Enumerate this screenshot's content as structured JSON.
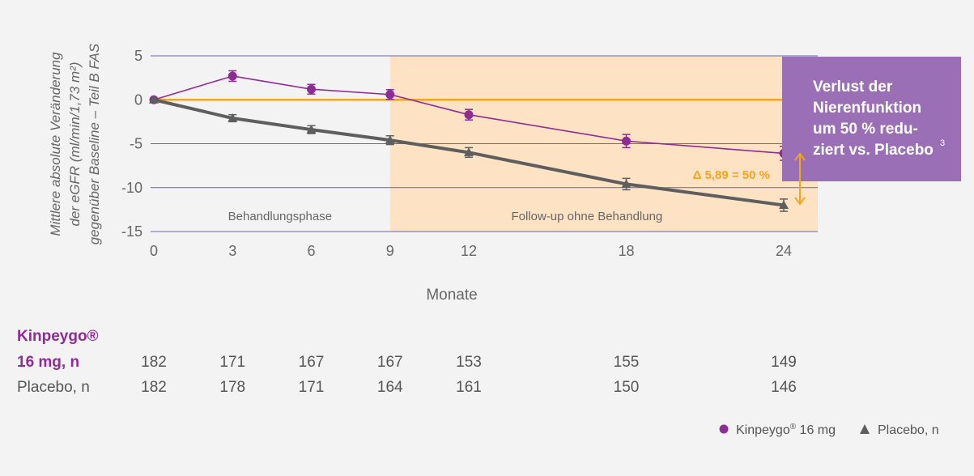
{
  "colors": {
    "kinpeygo": "#8d2c94",
    "placebo": "#5e5e5e",
    "reference": "#f2a520",
    "followup_band": "#fde3c3",
    "callout_bg": "#9b6fb5",
    "grid": "#6a63b8",
    "delta": "#f2a520"
  },
  "chart_data": {
    "type": "line",
    "ylabel_lines": [
      "Mittlere absolute Veränderung",
      "der eGFR (ml/min/1,73 m²)",
      "gegenüber Baseline – Teil B FAS"
    ],
    "xlabel": "Monate",
    "x": [
      0,
      3,
      6,
      9,
      12,
      18,
      24
    ],
    "x_tick_labels": [
      "0",
      "3",
      "6",
      "9",
      "12",
      "18",
      "24"
    ],
    "y_ticks": [
      5,
      0,
      -5,
      -10,
      -15
    ],
    "y_tick_labels": [
      "5",
      "0",
      "-5",
      "-10",
      "-15"
    ],
    "xlim": [
      0,
      24
    ],
    "ylim": [
      -15,
      5
    ],
    "series": [
      {
        "name": "Kinpeygo® 16 mg",
        "marker": "circle",
        "x": [
          0,
          3,
          6,
          9,
          12,
          18,
          24
        ],
        "values": [
          0,
          2.7,
          1.2,
          0.6,
          -1.7,
          -4.7,
          -6.1
        ],
        "err": [
          0,
          0.6,
          0.55,
          0.55,
          0.6,
          0.75,
          0.8
        ]
      },
      {
        "name": "Placebo, n",
        "marker": "triangle",
        "x": [
          0,
          3,
          6,
          9,
          12,
          18,
          24
        ],
        "values": [
          0,
          -2.1,
          -3.4,
          -4.6,
          -6.0,
          -9.6,
          -12.0
        ],
        "err": [
          0,
          0.4,
          0.45,
          0.5,
          0.55,
          0.65,
          0.7
        ]
      }
    ],
    "reference_line": {
      "y": 0
    },
    "phases": [
      {
        "label": "Behandlungsphase",
        "x_start": 0,
        "x_end": 9
      },
      {
        "label": "Follow-up ohne Behandlung",
        "x_start": 9,
        "x_end": 24
      }
    ],
    "delta_annotation": {
      "label": "Δ 5,89 = 50 %",
      "y_top": -6.1,
      "y_bottom": -12.0
    },
    "callout": {
      "lines": [
        "Verlust der",
        "Nierenfunktion",
        "um 50 % redu-",
        "ziert vs. Placebo"
      ],
      "superscript": "3"
    },
    "legend": {
      "placement": "bottom-right",
      "items": [
        {
          "label": "Kinpeygo",
          "reg": "®",
          "suffix": " 16 mg",
          "marker": "circle"
        },
        {
          "label": "Placebo, n",
          "marker": "triangle"
        }
      ]
    },
    "n_table": {
      "rows": [
        {
          "label_lines": [
            "Kinpeygo®",
            "16 mg, n"
          ],
          "values": [
            "182",
            "171",
            "167",
            "167",
            "153",
            "155",
            "149"
          ]
        },
        {
          "label_lines": [
            "Placebo, n"
          ],
          "values": [
            "182",
            "178",
            "171",
            "164",
            "161",
            "150",
            "146"
          ]
        }
      ]
    }
  }
}
